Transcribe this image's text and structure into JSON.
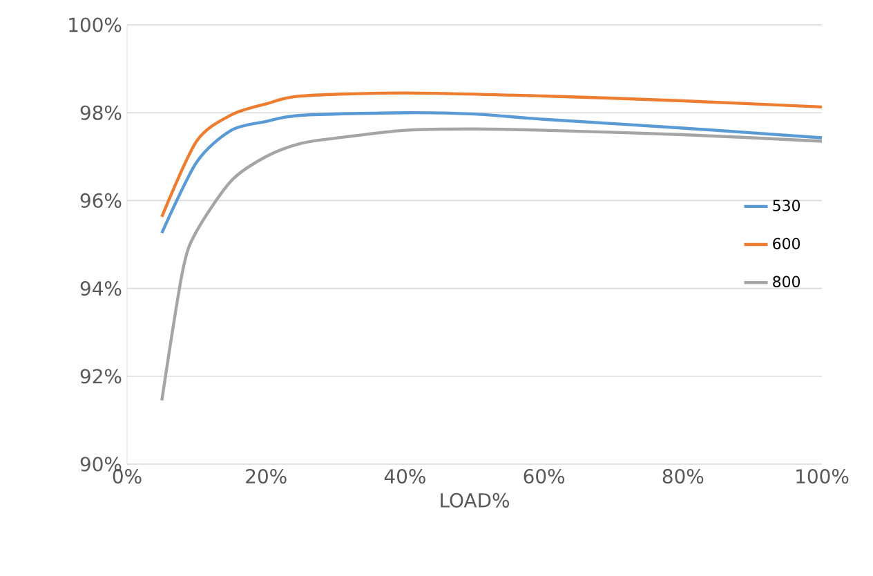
{
  "chart_data": {
    "type": "line",
    "xlabel": "LOAD%",
    "series": [
      {
        "name": "530",
        "color": "#5b9bd5",
        "x": [
          5,
          10,
          15,
          20,
          25,
          40,
          50,
          60,
          80,
          100
        ],
        "values": [
          95.26,
          96.87,
          97.6,
          97.8,
          97.94,
          98.0,
          97.97,
          97.85,
          97.65,
          97.43
        ]
      },
      {
        "name": "600",
        "color": "#ed7d31",
        "x": [
          5,
          10,
          15,
          20,
          25,
          40,
          60,
          80,
          100
        ],
        "values": [
          95.63,
          97.35,
          97.95,
          98.2,
          98.38,
          98.45,
          98.38,
          98.27,
          98.13
        ]
      },
      {
        "name": "800",
        "color": "#a5a5a5",
        "x": [
          5,
          8,
          10,
          15,
          20,
          25,
          30,
          40,
          50,
          60,
          80,
          100
        ],
        "values": [
          91.45,
          94.4,
          95.3,
          96.45,
          97.0,
          97.3,
          97.42,
          97.6,
          97.63,
          97.6,
          97.5,
          97.35
        ]
      }
    ],
    "xlim": [
      0,
      100
    ],
    "ylim": [
      90,
      100
    ],
    "xticks": [
      {
        "value": 0,
        "label": "0%"
      },
      {
        "value": 20,
        "label": "20%"
      },
      {
        "value": 40,
        "label": "40%"
      },
      {
        "value": 60,
        "label": "60%"
      },
      {
        "value": 80,
        "label": "80%"
      },
      {
        "value": 100,
        "label": "100%"
      }
    ],
    "yticks": [
      {
        "value": 90,
        "label": "90%"
      },
      {
        "value": 92,
        "label": "92%"
      },
      {
        "value": 94,
        "label": "94%"
      },
      {
        "value": 96,
        "label": "96%"
      },
      {
        "value": 98,
        "label": "98%"
      },
      {
        "value": 100,
        "label": "100%"
      }
    ],
    "grid": "y",
    "legend": "right",
    "marker": "none",
    "line_style": "solid"
  }
}
